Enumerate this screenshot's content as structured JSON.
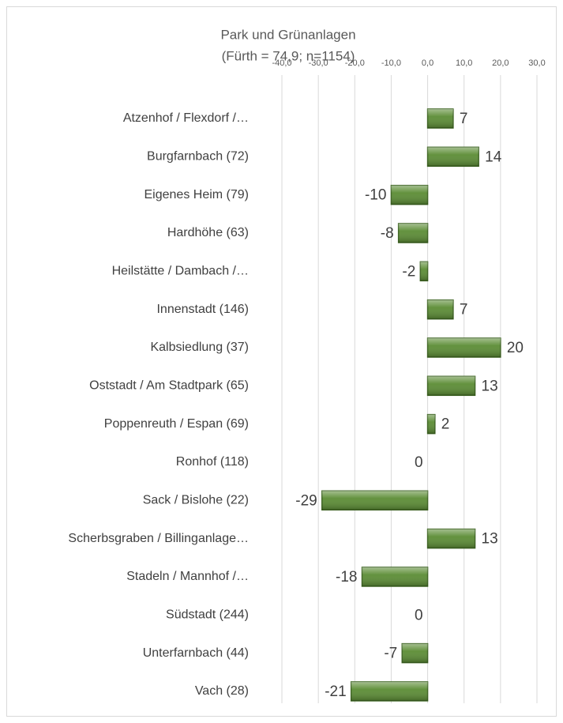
{
  "chart_data": {
    "type": "bar",
    "orientation": "horizontal",
    "title": "Park und Grünanlagen",
    "subtitle": "(Fürth = 74,9; n=1154)",
    "categories": [
      "Atzenhof / Flexdorf /…",
      "Burgfarnbach (72)",
      "Eigenes Heim (79)",
      "Hardhöhe (63)",
      "Heilstätte / Dambach /…",
      "Innenstadt (146)",
      "Kalbsiedlung (37)",
      "Oststadt / Am Stadtpark (65)",
      "Poppenreuth / Espan (69)",
      "Ronhof (118)",
      "Sack / Bislohe (22)",
      "Scherbsgraben / Billinganlage…",
      "Stadeln / Mannhof /…",
      "Südstadt (244)",
      "Unterfarnbach (44)",
      "Vach (28)"
    ],
    "values": [
      7,
      14,
      -10,
      -8,
      -2,
      7,
      20,
      13,
      2,
      0,
      -29,
      13,
      -18,
      0,
      -7,
      -21
    ],
    "color": "#5b8c34",
    "xlim": [
      -40,
      30
    ],
    "xticks": [
      {
        "value": -40,
        "label": "-40,0"
      },
      {
        "value": -30,
        "label": "-30,0"
      },
      {
        "value": -20,
        "label": "-20,0"
      },
      {
        "value": -10,
        "label": "-10,0"
      },
      {
        "value": 0,
        "label": "0,0"
      },
      {
        "value": 10,
        "label": "10,0"
      },
      {
        "value": 20,
        "label": "20,0"
      },
      {
        "value": 30,
        "label": "30,0"
      }
    ],
    "grid": true
  }
}
